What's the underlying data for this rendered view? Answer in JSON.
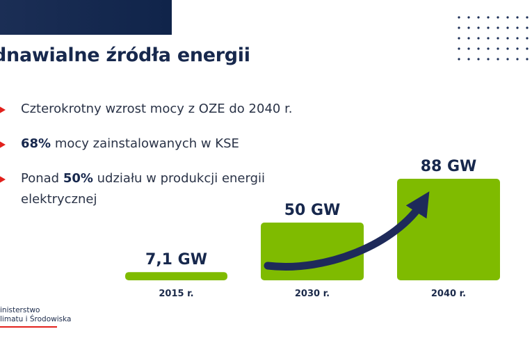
{
  "title": "dnawialne źródła energii",
  "bullets": [
    {
      "text": "Czterokrotny wzrost mocy z OZE do 2040 r."
    },
    {
      "bold": "68%",
      "after": " mocy zainstalowanych w KSE"
    },
    {
      "before": "Ponad ",
      "bold": "50%",
      "after": " udziału w produkcji energii elektrycznej"
    }
  ],
  "logo": {
    "line1": "inisterstwo",
    "line2": "limatu i Środowiska"
  },
  "colors": {
    "bar": "#7fbb00",
    "navy": "#1b2e55",
    "accent": "#e2211c",
    "arrow": "#1e2a5a"
  },
  "icons": {
    "bullet": "red-triangle-arrow-icon",
    "trend": "curved-arrow-icon",
    "decor": "dot-grid"
  },
  "chart_data": {
    "type": "bar",
    "categories": [
      "2015 r.",
      "2030 r.",
      "2040 r."
    ],
    "values": [
      7.1,
      50,
      88
    ],
    "data_labels": [
      "7,1 GW",
      "50 GW",
      "88 GW"
    ],
    "unit": "GW",
    "grid": false
  }
}
